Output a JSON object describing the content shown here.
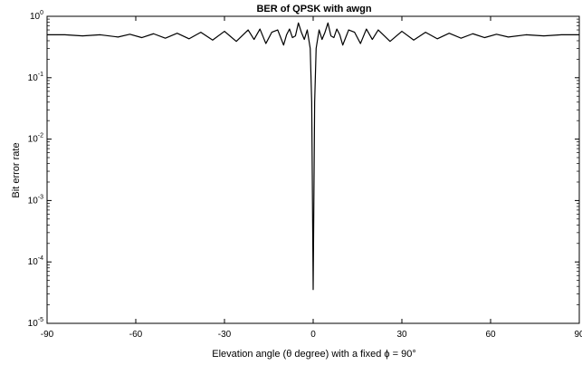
{
  "chart_data": {
    "type": "line",
    "title": "BER of QPSK with awgn",
    "xlabel": "Elevation angle (θ degree) with a fixed ϕ = 90°",
    "ylabel": "Bit error rate",
    "xlim": [
      -90,
      90
    ],
    "ylim": [
      1e-05,
      1
    ],
    "yscale": "log",
    "grid": false,
    "x_ticks": [
      -90,
      -60,
      -30,
      0,
      30,
      60,
      90
    ],
    "x_tick_labels": [
      "-90",
      "-60",
      "-30",
      "0",
      "30",
      "60",
      "90"
    ],
    "y_ticks": [
      1e-05,
      0.0001,
      0.001,
      0.01,
      0.1,
      1
    ],
    "y_tick_labels": [
      {
        "base": "10",
        "exp": "-5"
      },
      {
        "base": "10",
        "exp": "-4"
      },
      {
        "base": "10",
        "exp": "-3"
      },
      {
        "base": "10",
        "exp": "-2"
      },
      {
        "base": "10",
        "exp": "-1"
      },
      {
        "base": "10",
        "exp": "0"
      }
    ],
    "series": [
      {
        "color": "#000000",
        "x": [
          -90,
          -84,
          -78,
          -72,
          -66,
          -62,
          -58,
          -54,
          -50,
          -46,
          -42,
          -38,
          -34,
          -30,
          -26,
          -22,
          -20,
          -18,
          -16,
          -14,
          -12,
          -10,
          -9,
          -8,
          -7,
          -6,
          -5,
          -4,
          -3,
          -2,
          -1,
          -0.5,
          0,
          0.5,
          1,
          2,
          3,
          4,
          5,
          6,
          7,
          8,
          9,
          10,
          12,
          14,
          16,
          18,
          20,
          22,
          26,
          30,
          34,
          38,
          42,
          46,
          50,
          54,
          58,
          62,
          66,
          72,
          78,
          84,
          90
        ],
        "y": [
          0.5,
          0.5,
          0.48,
          0.5,
          0.46,
          0.51,
          0.45,
          0.52,
          0.44,
          0.53,
          0.43,
          0.55,
          0.41,
          0.57,
          0.39,
          0.6,
          0.42,
          0.62,
          0.36,
          0.55,
          0.6,
          0.34,
          0.5,
          0.62,
          0.45,
          0.48,
          0.78,
          0.55,
          0.42,
          0.6,
          0.3,
          0.04,
          3.55e-05,
          0.04,
          0.3,
          0.6,
          0.42,
          0.55,
          0.78,
          0.48,
          0.45,
          0.62,
          0.5,
          0.34,
          0.6,
          0.55,
          0.36,
          0.62,
          0.42,
          0.6,
          0.39,
          0.57,
          0.41,
          0.55,
          0.43,
          0.53,
          0.44,
          0.52,
          0.45,
          0.51,
          0.46,
          0.5,
          0.48,
          0.5,
          0.5
        ]
      }
    ]
  }
}
